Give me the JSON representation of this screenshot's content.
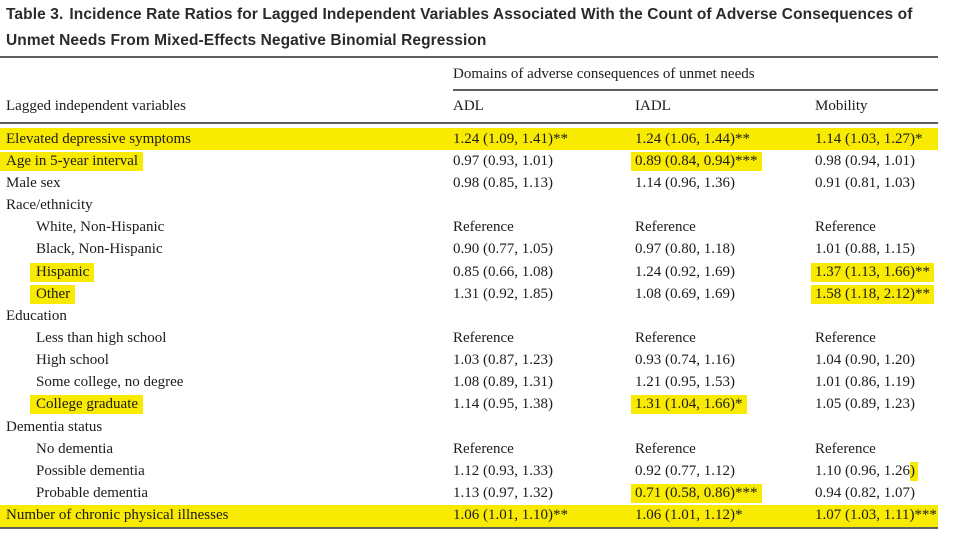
{
  "title": {
    "label": "Table 3.",
    "line1": "Incidence Rate Ratios for Lagged Independent Variables Associated With the Count of Adverse Consequences of",
    "line2": "Unmet Needs From Mixed-Effects Negative Binomial Regression"
  },
  "colors": {
    "highlight": "#f8ea00",
    "rule": "#5f5f5f",
    "title_text": "#2b2b2b",
    "body_text": "#1c1c1c",
    "background": "#ffffff"
  },
  "table": {
    "spanner": "Domains of adverse consequences of unmet needs",
    "stub_header": "Lagged independent variables",
    "columns": [
      "ADL",
      "IADL",
      "Mobility"
    ],
    "rows": [
      {
        "label": "Elevated depressive symptoms",
        "indent": 0,
        "label_hl": false,
        "row_hl": true,
        "cells": [
          {
            "t": "1.24 (1.09, 1.41)**",
            "hl": "none"
          },
          {
            "t": "1.24 (1.06, 1.44)**",
            "hl": "none"
          },
          {
            "t": "1.14 (1.03, 1.27)*",
            "hl": "none"
          }
        ]
      },
      {
        "label": "Age in 5-year interval",
        "indent": 0,
        "label_hl": true,
        "row_hl": false,
        "cells": [
          {
            "t": "0.97 (0.93, 1.01)",
            "hl": "none"
          },
          {
            "t": "0.89 (0.84, 0.94)***",
            "hl": "full"
          },
          {
            "t": "0.98 (0.94, 1.01)",
            "hl": "none"
          }
        ]
      },
      {
        "label": "Male sex",
        "indent": 0,
        "label_hl": false,
        "row_hl": false,
        "cells": [
          {
            "t": "0.98 (0.85, 1.13)",
            "hl": "none"
          },
          {
            "t": "1.14 (0.96, 1.36)",
            "hl": "none"
          },
          {
            "t": "0.91 (0.81, 1.03)",
            "hl": "none"
          }
        ]
      },
      {
        "label": "Race/ethnicity",
        "indent": 0,
        "label_hl": false,
        "row_hl": false,
        "cells": []
      },
      {
        "label": "White, Non-Hispanic",
        "indent": 1,
        "label_hl": false,
        "row_hl": false,
        "cells": [
          {
            "t": "Reference",
            "hl": "none"
          },
          {
            "t": "Reference",
            "hl": "none"
          },
          {
            "t": "Reference",
            "hl": "none"
          }
        ]
      },
      {
        "label": "Black, Non-Hispanic",
        "indent": 1,
        "label_hl": false,
        "row_hl": false,
        "cells": [
          {
            "t": "0.90 (0.77, 1.05)",
            "hl": "none"
          },
          {
            "t": "0.97 (0.80, 1.18)",
            "hl": "none"
          },
          {
            "t": "1.01 (0.88, 1.15)",
            "hl": "none"
          }
        ]
      },
      {
        "label": "Hispanic",
        "indent": 1,
        "label_hl": true,
        "row_hl": false,
        "cells": [
          {
            "t": "0.85 (0.66, 1.08)",
            "hl": "none"
          },
          {
            "t": "1.24 (0.92, 1.69)",
            "hl": "none"
          },
          {
            "t": "1.37 (1.13, 1.66)**",
            "hl": "full"
          }
        ]
      },
      {
        "label": "Other",
        "indent": 1,
        "label_hl": true,
        "row_hl": false,
        "cells": [
          {
            "t": "1.31 (0.92, 1.85)",
            "hl": "none"
          },
          {
            "t": "1.08 (0.69, 1.69)",
            "hl": "none"
          },
          {
            "t": "1.58 (1.18, 2.12)**",
            "hl": "full"
          }
        ]
      },
      {
        "label": "Education",
        "indent": 0,
        "label_hl": false,
        "row_hl": false,
        "cells": []
      },
      {
        "label": "Less than high school",
        "indent": 1,
        "label_hl": false,
        "row_hl": false,
        "cells": [
          {
            "t": "Reference",
            "hl": "none"
          },
          {
            "t": "Reference",
            "hl": "none"
          },
          {
            "t": "Reference",
            "hl": "none"
          }
        ]
      },
      {
        "label": "High school",
        "indent": 1,
        "label_hl": false,
        "row_hl": false,
        "cells": [
          {
            "t": "1.03 (0.87, 1.23)",
            "hl": "none"
          },
          {
            "t": "0.93 (0.74, 1.16)",
            "hl": "none"
          },
          {
            "t": "1.04 (0.90, 1.20)",
            "hl": "none"
          }
        ]
      },
      {
        "label": "Some college, no degree",
        "indent": 1,
        "label_hl": false,
        "row_hl": false,
        "cells": [
          {
            "t": "1.08 (0.89, 1.31)",
            "hl": "none"
          },
          {
            "t": "1.21 (0.95, 1.53)",
            "hl": "none"
          },
          {
            "t": "1.01 (0.86, 1.19)",
            "hl": "none"
          }
        ]
      },
      {
        "label": "College graduate",
        "indent": 1,
        "label_hl": true,
        "row_hl": false,
        "cells": [
          {
            "t": "1.14 (0.95, 1.38)",
            "hl": "none"
          },
          {
            "t": "1.31 (1.04, 1.66)*",
            "hl": "full"
          },
          {
            "t": "1.05 (0.89, 1.23)",
            "hl": "none"
          }
        ]
      },
      {
        "label": "Dementia status",
        "indent": 0,
        "label_hl": false,
        "row_hl": false,
        "cells": []
      },
      {
        "label": "No dementia",
        "indent": 1,
        "label_hl": false,
        "row_hl": false,
        "cells": [
          {
            "t": "Reference",
            "hl": "none"
          },
          {
            "t": "Reference",
            "hl": "none"
          },
          {
            "t": "Reference",
            "hl": "none"
          }
        ]
      },
      {
        "label": "Possible dementia",
        "indent": 1,
        "label_hl": false,
        "row_hl": false,
        "cells": [
          {
            "t": "1.12 (0.93, 1.33)",
            "hl": "none"
          },
          {
            "t": "0.92 (0.77, 1.12)",
            "hl": "none"
          },
          {
            "t": "1.10 (0.96, 1.26)",
            "hl": "last"
          }
        ]
      },
      {
        "label": "Probable dementia",
        "indent": 1,
        "label_hl": false,
        "row_hl": false,
        "cells": [
          {
            "t": "1.13 (0.97, 1.32)",
            "hl": "none"
          },
          {
            "t": "0.71 (0.58, 0.86)***",
            "hl": "full"
          },
          {
            "t": "0.94 (0.82, 1.07)",
            "hl": "none"
          }
        ]
      },
      {
        "label": "Number of chronic physical illnesses",
        "indent": 0,
        "label_hl": false,
        "row_hl": true,
        "cells": [
          {
            "t": "1.06 (1.01, 1.10)**",
            "hl": "none"
          },
          {
            "t": "1.06 (1.01, 1.12)*",
            "hl": "none"
          },
          {
            "t": "1.07 (1.03, 1.11)***",
            "hl": "none"
          }
        ]
      }
    ]
  }
}
